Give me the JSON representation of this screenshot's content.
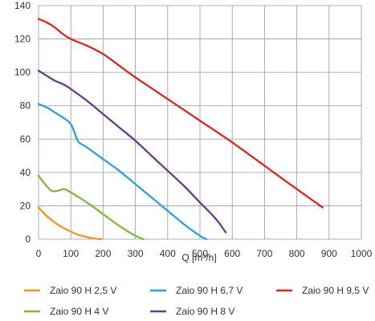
{
  "chart_data": {
    "type": "line",
    "title": "",
    "xlabel": "Q [m³/h]",
    "ylabel": "",
    "xlim": [
      0,
      1000
    ],
    "ylim": [
      0,
      140
    ],
    "x_ticks": [
      0,
      100,
      200,
      300,
      400,
      500,
      600,
      700,
      800,
      900,
      1000
    ],
    "y_ticks": [
      0,
      20,
      40,
      60,
      80,
      100,
      120,
      140
    ],
    "grid": true,
    "legend_position": "bottom",
    "series": [
      {
        "name": "Zaio 90 H 2,5 V",
        "color": "#f7941d",
        "x": [
          0,
          25,
          50,
          75,
          100,
          125,
          150,
          175,
          195
        ],
        "y": [
          19,
          14,
          10,
          7,
          4.5,
          2.5,
          1.2,
          0.3,
          0
        ]
      },
      {
        "name": "Zaio 90 H 4 V",
        "color": "#7dbb35",
        "x": [
          0,
          20,
          40,
          60,
          80,
          100,
          150,
          200,
          250,
          300,
          325
        ],
        "y": [
          38,
          33,
          29,
          29,
          30,
          28,
          22,
          15,
          8,
          2,
          0
        ]
      },
      {
        "name": "Zaio 90 H 6,7 V",
        "color": "#29a3dc",
        "x": [
          0,
          25,
          50,
          75,
          100,
          115,
          125,
          150,
          200,
          250,
          300,
          350,
          400,
          450,
          500,
          520
        ],
        "y": [
          81,
          79,
          76,
          73,
          69,
          62,
          58,
          55,
          48,
          41,
          33,
          25,
          17,
          9,
          2,
          0
        ]
      },
      {
        "name": "Zaio 90 H 8 V",
        "color": "#6a3a8e",
        "x": [
          0,
          25,
          50,
          75,
          100,
          150,
          200,
          250,
          300,
          350,
          400,
          450,
          500,
          550,
          580
        ],
        "y": [
          101,
          98,
          95,
          93,
          90,
          83,
          75,
          67,
          59,
          50,
          41,
          32,
          22,
          12,
          4
        ]
      },
      {
        "name": "Zaio 90 H 9,5 V",
        "color": "#e2231a",
        "x": [
          0,
          25,
          50,
          75,
          100,
          150,
          200,
          250,
          300,
          400,
          500,
          600,
          700,
          800,
          880
        ],
        "y": [
          132,
          130,
          127,
          123,
          120,
          116,
          111,
          104,
          97,
          84,
          71,
          58,
          44,
          30,
          19
        ]
      }
    ]
  }
}
